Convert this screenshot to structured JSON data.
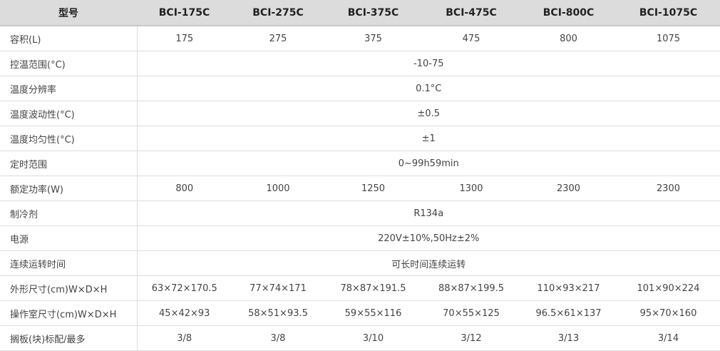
{
  "header": {
    "label": "型号",
    "models": [
      "BCI-175C",
      "BCI-275C",
      "BCI-375C",
      "BCI-475C",
      "BCI-800C",
      "BCI-1075C"
    ]
  },
  "rows": [
    {
      "label": "容积(L)",
      "values": [
        "175",
        "275",
        "375",
        "475",
        "800",
        "1075"
      ]
    },
    {
      "label": "控温范围(°C)",
      "values": [
        "-10-75"
      ]
    },
    {
      "label": "温度分辨率",
      "values": [
        "0.1°C"
      ]
    },
    {
      "label": "温度波动性(°C)",
      "values": [
        "±0.5"
      ]
    },
    {
      "label": "温度均匀性(°C)",
      "values": [
        "±1"
      ]
    },
    {
      "label": "定时范围",
      "values": [
        "0~99h59min"
      ]
    },
    {
      "label": "额定功率(W)",
      "values": [
        "800",
        "1000",
        "1250",
        "1300",
        "2300",
        "2300"
      ]
    },
    {
      "label": "制冷剂",
      "values": [
        "R134a"
      ]
    },
    {
      "label": "电源",
      "values": [
        "220V±10%,50Hz±2%"
      ]
    },
    {
      "label": "连续运转时间",
      "values": [
        "可长时间连续运转"
      ]
    },
    {
      "label": "外形尺寸(cm)W×D×H",
      "values": [
        "63×72×170.5",
        "77×74×171",
        "78×87×191.5",
        "88×87×199.5",
        "110×93×217",
        "101×90×224"
      ]
    },
    {
      "label": "操作室尺寸(cm)W×D×H",
      "values": [
        "45×42×93",
        "58×51×93.5",
        "59×55×116",
        "70×55×125",
        "96.5×61×137",
        "95×70×160"
      ]
    },
    {
      "label": "搁板(块)标配/最多",
      "values": [
        "3/8",
        "3/8",
        "3/10",
        "3/12",
        "3/13",
        "3/14"
      ]
    }
  ]
}
